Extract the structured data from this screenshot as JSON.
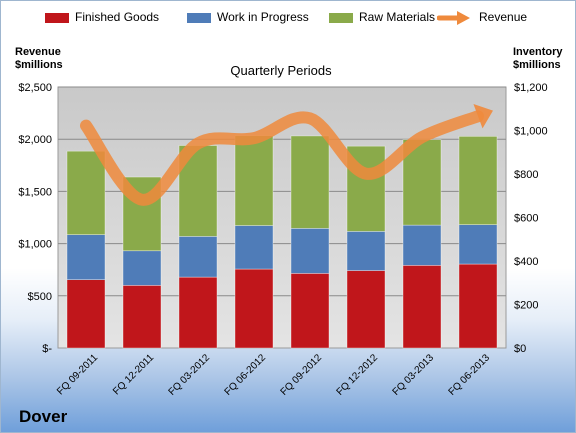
{
  "company": "Dover",
  "chart_data": {
    "type": "bar",
    "subtitle": "Quarterly Periods",
    "categories": [
      "FQ 09-2011",
      "FQ 12-2011",
      "FQ 03-2012",
      "FQ 06-2012",
      "FQ 09-2012",
      "FQ 12-2012",
      "FQ 03-2013",
      "FQ 06-2013"
    ],
    "stacked": true,
    "left_axis": {
      "label_line1": "Revenue",
      "label_line2": "$millions",
      "ylim": [
        0,
        2500
      ],
      "ticks": [
        0,
        500,
        1000,
        1500,
        2000,
        2500
      ],
      "tick_labels": [
        "$-",
        "$500",
        "$1,000",
        "$1,500",
        "$2,000",
        "$2,500"
      ]
    },
    "right_axis": {
      "label_line1": "Inventory",
      "label_line2": "$millions",
      "ylim": [
        0,
        1200
      ],
      "ticks": [
        0,
        200,
        400,
        600,
        800,
        1000,
        1200
      ],
      "tick_labels": [
        "$0",
        "$200",
        "$400",
        "$600",
        "$800",
        "$1,000",
        "$1,200"
      ]
    },
    "series": [
      {
        "name": "Finished Goods",
        "axis": "right",
        "color": "#c0161b",
        "values": [
          314,
          288,
          326,
          363,
          343,
          356,
          380,
          386
        ]
      },
      {
        "name": "Work in Progress",
        "axis": "right",
        "color": "#4f7cb8",
        "values": [
          207,
          159,
          187,
          200,
          207,
          180,
          185,
          181
        ]
      },
      {
        "name": "Raw Materials",
        "axis": "right",
        "color": "#8aaa4a",
        "values": [
          384,
          339,
          418,
          413,
          425,
          392,
          393,
          406
        ]
      },
      {
        "name": "Revenue",
        "axis": "left",
        "type": "line",
        "color": "#ef8a3c",
        "values": [
          2130,
          1420,
          1960,
          2010,
          2200,
          1670,
          2020,
          2220
        ]
      }
    ],
    "grid": true,
    "legend": "top"
  }
}
